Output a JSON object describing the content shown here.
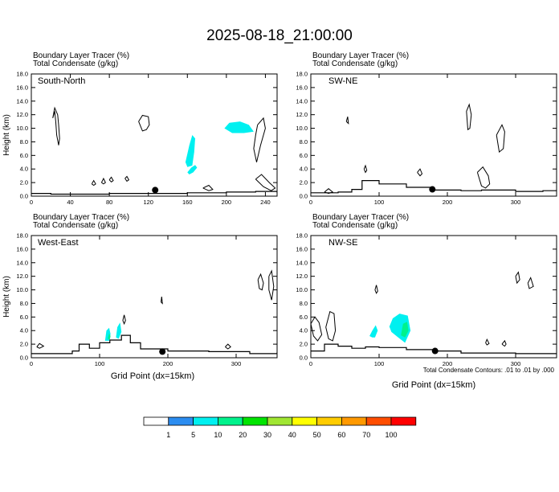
{
  "title": "2025-08-18_21:00:00",
  "footnote": "Total Condensate Contours: .01 to .01 by .000",
  "panel_subtitle_1": "Boundary Layer Tracer   (%)",
  "panel_subtitle_2": "Total Condensate   (g/kg)",
  "colorbar": {
    "colors": [
      "#ffffff",
      "#2c8df0",
      "#00f0f0",
      "#00f28c",
      "#00e400",
      "#a0e632",
      "#ffff00",
      "#ffcc00",
      "#ff9900",
      "#ff4d00",
      "#ff0000"
    ],
    "labels": [
      "1",
      "5",
      "10",
      "20",
      "30",
      "40",
      "50",
      "60",
      "70",
      "100"
    ]
  },
  "chart_data": [
    {
      "type": "contour",
      "panel_title": "South-North",
      "xlabel": "",
      "ylabel": "Height (km)",
      "xlim": [
        0,
        252
      ],
      "ylim": [
        0,
        18
      ],
      "xticks": [
        "0",
        "40",
        "80",
        "120",
        "160",
        "200",
        "240"
      ],
      "yticks": [
        "0.0",
        "2.0",
        "4.0",
        "6.0",
        "8.0",
        "10.0",
        "12.0",
        "14.0",
        "16.0",
        "18.0"
      ],
      "marker": {
        "x": 127,
        "y": 0.9
      },
      "terrain": [
        [
          0,
          0.4
        ],
        [
          20,
          0.3
        ],
        [
          40,
          0.3
        ],
        [
          80,
          0.4
        ],
        [
          120,
          0.4
        ],
        [
          160,
          0.5
        ],
        [
          200,
          0.6
        ],
        [
          230,
          0.7
        ],
        [
          252,
          0.5
        ]
      ],
      "shading": [
        {
          "bin": "5",
          "points": [
            [
              198,
              10.0
            ],
            [
              203,
              10.8
            ],
            [
              214,
              11.0
            ],
            [
              223,
              10.5
            ],
            [
              228,
              9.5
            ],
            [
              218,
              9.3
            ],
            [
              206,
              9.3
            ]
          ]
        },
        {
          "bin": "5",
          "points": [
            [
              158,
              5.0
            ],
            [
              162,
              7.5
            ],
            [
              165,
              9.0
            ],
            [
              168,
              8.5
            ],
            [
              167,
              6.5
            ],
            [
              165,
              4.5
            ],
            [
              160,
              4.3
            ]
          ]
        },
        {
          "bin": "5",
          "points": [
            [
              160,
              3.5
            ],
            [
              164,
              4.2
            ],
            [
              168,
              4.6
            ],
            [
              170,
              4.2
            ],
            [
              166,
              3.5
            ],
            [
              162,
              3.2
            ]
          ]
        }
      ],
      "contours": [
        [
          [
            22,
            11.5
          ],
          [
            24,
            12.5
          ],
          [
            25,
            11.0
          ],
          [
            26,
            9.0
          ],
          [
            28,
            7.5
          ],
          [
            29,
            8.5
          ],
          [
            28,
            10.5
          ],
          [
            27,
            12.0
          ],
          [
            24,
            13.0
          ],
          [
            22,
            11.5
          ]
        ],
        [
          [
            110,
            11.0
          ],
          [
            114,
            11.9
          ],
          [
            120,
            11.7
          ],
          [
            121,
            10.5
          ],
          [
            118,
            9.8
          ],
          [
            114,
            9.6
          ],
          [
            110,
            11.0
          ]
        ],
        [
          [
            232,
            10.5
          ],
          [
            238,
            11.5
          ],
          [
            240,
            10.0
          ],
          [
            235,
            7.5
          ],
          [
            231,
            5.0
          ],
          [
            228,
            7.0
          ],
          [
            230,
            9.0
          ],
          [
            232,
            10.5
          ]
        ],
        [
          [
            230,
            2.5
          ],
          [
            236,
            3.2
          ],
          [
            244,
            2.0
          ],
          [
            250,
            1.2
          ],
          [
            246,
            0.8
          ],
          [
            238,
            1.4
          ],
          [
            230,
            2.5
          ]
        ],
        [
          [
            176,
            1.2
          ],
          [
            182,
            1.6
          ],
          [
            186,
            1.0
          ],
          [
            182,
            0.8
          ],
          [
            176,
            1.2
          ]
        ],
        [
          [
            72,
            2.0
          ],
          [
            74,
            2.6
          ],
          [
            76,
            2.0
          ],
          [
            74,
            1.8
          ],
          [
            72,
            2.0
          ]
        ],
        [
          [
            80,
            2.4
          ],
          [
            82,
            2.8
          ],
          [
            84,
            2.3
          ],
          [
            82,
            2.1
          ],
          [
            80,
            2.4
          ]
        ],
        [
          [
            62,
            1.8
          ],
          [
            64,
            2.3
          ],
          [
            66,
            1.8
          ],
          [
            64,
            1.6
          ],
          [
            62,
            1.8
          ]
        ],
        [
          [
            96,
            2.6
          ],
          [
            98,
            2.9
          ],
          [
            100,
            2.4
          ],
          [
            98,
            2.2
          ],
          [
            96,
            2.6
          ]
        ]
      ]
    },
    {
      "type": "contour",
      "panel_title": "SW-NE",
      "xlabel": "",
      "ylabel": "",
      "xlim": [
        0,
        360
      ],
      "ylim": [
        0,
        18
      ],
      "xticks": [
        "0",
        "100",
        "200",
        "300"
      ],
      "yticks": [
        "0.0",
        "2.0",
        "4.0",
        "6.0",
        "8.0",
        "10.0",
        "12.0",
        "14.0",
        "16.0",
        "18.0"
      ],
      "marker": {
        "x": 178,
        "y": 1.0
      },
      "terrain": [
        [
          0,
          0.5
        ],
        [
          40,
          0.6
        ],
        [
          60,
          1.0
        ],
        [
          75,
          2.3
        ],
        [
          100,
          1.8
        ],
        [
          140,
          1.3
        ],
        [
          180,
          0.9
        ],
        [
          220,
          0.8
        ],
        [
          250,
          0.9
        ],
        [
          300,
          0.7
        ],
        [
          340,
          0.8
        ],
        [
          360,
          0.9
        ]
      ],
      "shading": [],
      "contours": [
        [
          [
            228,
            12.5
          ],
          [
            232,
            13.5
          ],
          [
            235,
            12.0
          ],
          [
            233,
            10.0
          ],
          [
            230,
            9.8
          ],
          [
            228,
            12.5
          ]
        ],
        [
          [
            272,
            9.0
          ],
          [
            280,
            10.5
          ],
          [
            284,
            9.5
          ],
          [
            282,
            7.0
          ],
          [
            276,
            6.5
          ],
          [
            272,
            9.0
          ]
        ],
        [
          [
            244,
            3.5
          ],
          [
            252,
            4.3
          ],
          [
            260,
            3.0
          ],
          [
            262,
            1.8
          ],
          [
            256,
            1.2
          ],
          [
            250,
            1.5
          ],
          [
            244,
            3.5
          ]
        ],
        [
          [
            52,
            11.0
          ],
          [
            54,
            11.7
          ],
          [
            55,
            10.7
          ],
          [
            52,
            11.0
          ]
        ],
        [
          [
            78,
            4.0
          ],
          [
            80,
            4.5
          ],
          [
            82,
            3.8
          ],
          [
            80,
            3.5
          ],
          [
            78,
            4.0
          ]
        ],
        [
          [
            156,
            3.5
          ],
          [
            160,
            4.0
          ],
          [
            163,
            3.3
          ],
          [
            160,
            3.0
          ],
          [
            156,
            3.5
          ]
        ],
        [
          [
            20,
            0.6
          ],
          [
            26,
            1.1
          ],
          [
            32,
            0.6
          ],
          [
            26,
            0.4
          ],
          [
            20,
            0.6
          ]
        ]
      ]
    },
    {
      "type": "contour",
      "panel_title": "West-East",
      "xlabel": "Grid Point (dx=15km)",
      "ylabel": "Height (km)",
      "xlim": [
        0,
        360
      ],
      "ylim": [
        0,
        18
      ],
      "xticks": [
        "0",
        "100",
        "200",
        "300"
      ],
      "yticks": [
        "0.0",
        "2.0",
        "4.0",
        "6.0",
        "8.0",
        "10.0",
        "12.0",
        "14.0",
        "16.0",
        "18.0"
      ],
      "marker": {
        "x": 192,
        "y": 0.9
      },
      "terrain": [
        [
          0,
          0.6
        ],
        [
          60,
          1.0
        ],
        [
          70,
          2.0
        ],
        [
          85,
          1.4
        ],
        [
          100,
          2.2
        ],
        [
          115,
          2.6
        ],
        [
          132,
          3.3
        ],
        [
          145,
          2.2
        ],
        [
          160,
          1.3
        ],
        [
          200,
          1.0
        ],
        [
          260,
          0.9
        ],
        [
          320,
          0.6
        ],
        [
          360,
          0.8
        ]
      ],
      "shading": [
        {
          "bin": "5",
          "points": [
            [
              108,
              2.5
            ],
            [
              110,
              4.0
            ],
            [
              114,
              4.4
            ],
            [
              116,
              3.5
            ],
            [
              114,
              2.5
            ]
          ]
        },
        {
          "bin": "5",
          "points": [
            [
              124,
              3.0
            ],
            [
              126,
              4.5
            ],
            [
              130,
              5.2
            ],
            [
              132,
              3.8
            ],
            [
              128,
              2.8
            ]
          ]
        },
        {
          "bin": "10",
          "points": [
            [
              112,
              2.8
            ],
            [
              114,
              3.6
            ],
            [
              116,
              3.2
            ],
            [
              115,
              2.7
            ]
          ]
        }
      ],
      "contours": [
        [
          [
            332,
            11.5
          ],
          [
            336,
            12.3
          ],
          [
            340,
            11.0
          ],
          [
            338,
            10.0
          ],
          [
            334,
            10.2
          ],
          [
            332,
            11.5
          ]
        ],
        [
          [
            348,
            12.0
          ],
          [
            352,
            12.8
          ],
          [
            355,
            10.5
          ],
          [
            352,
            8.5
          ],
          [
            348,
            10.0
          ],
          [
            348,
            12.0
          ]
        ],
        [
          [
            190,
            8.2
          ],
          [
            191,
            9.0
          ],
          [
            192,
            8.0
          ],
          [
            190,
            8.2
          ]
        ],
        [
          [
            134,
            5.5
          ],
          [
            136,
            6.3
          ],
          [
            138,
            5.5
          ],
          [
            136,
            5.0
          ],
          [
            134,
            5.5
          ]
        ],
        [
          [
            8,
            1.6
          ],
          [
            12,
            2.1
          ],
          [
            18,
            1.7
          ],
          [
            12,
            1.4
          ],
          [
            8,
            1.6
          ]
        ],
        [
          [
            284,
            1.6
          ],
          [
            288,
            2.0
          ],
          [
            292,
            1.6
          ],
          [
            288,
            1.3
          ],
          [
            284,
            1.6
          ]
        ]
      ]
    },
    {
      "type": "contour",
      "panel_title": "NW-SE",
      "xlabel": "Grid Point (dx=15km)",
      "ylabel": "",
      "xlim": [
        0,
        360
      ],
      "ylim": [
        0,
        18
      ],
      "xticks": [
        "0",
        "100",
        "200",
        "300"
      ],
      "yticks": [
        "0.0",
        "2.0",
        "4.0",
        "6.0",
        "8.0",
        "10.0",
        "12.0",
        "14.0",
        "16.0",
        "18.0"
      ],
      "marker": {
        "x": 182,
        "y": 1.0
      },
      "terrain": [
        [
          0,
          1.0
        ],
        [
          20,
          2.0
        ],
        [
          40,
          1.7
        ],
        [
          60,
          1.4
        ],
        [
          80,
          1.6
        ],
        [
          100,
          1.5
        ],
        [
          140,
          1.2
        ],
        [
          180,
          1.0
        ],
        [
          220,
          0.7
        ],
        [
          300,
          0.6
        ],
        [
          360,
          0.5
        ]
      ],
      "shading": [
        {
          "bin": "5",
          "points": [
            [
              115,
              4.6
            ],
            [
              120,
              5.8
            ],
            [
              130,
              6.5
            ],
            [
              142,
              6.2
            ],
            [
              146,
              4.0
            ],
            [
              138,
              2.2
            ],
            [
              128,
              3.0
            ],
            [
              118,
              3.8
            ]
          ]
        },
        {
          "bin": "5",
          "points": [
            [
              86,
              3.2
            ],
            [
              90,
              4.0
            ],
            [
              95,
              4.8
            ],
            [
              98,
              4.0
            ],
            [
              94,
              3.0
            ],
            [
              90,
              3.0
            ]
          ]
        },
        {
          "bin": "10",
          "points": [
            [
              132,
              3.3
            ],
            [
              135,
              5.0
            ],
            [
              141,
              5.3
            ],
            [
              143,
              4.0
            ],
            [
              138,
              3.0
            ]
          ]
        }
      ],
      "contours": [
        [
          [
            22,
            4.5
          ],
          [
            28,
            6.8
          ],
          [
            34,
            6.5
          ],
          [
            36,
            4.0
          ],
          [
            32,
            2.5
          ],
          [
            26,
            2.8
          ],
          [
            22,
            4.5
          ]
        ],
        [
          [
            0,
            5.0
          ],
          [
            6,
            6.0
          ],
          [
            12,
            5.2
          ],
          [
            16,
            3.4
          ],
          [
            10,
            2.5
          ],
          [
            4,
            3.2
          ],
          [
            0,
            5.0
          ]
        ],
        [
          [
            94,
            10.0
          ],
          [
            96,
            10.7
          ],
          [
            98,
            9.8
          ],
          [
            96,
            9.5
          ],
          [
            94,
            10.0
          ]
        ],
        [
          [
            300,
            12.0
          ],
          [
            304,
            12.6
          ],
          [
            306,
            11.5
          ],
          [
            302,
            11.0
          ],
          [
            300,
            12.0
          ]
        ],
        [
          [
            318,
            11.0
          ],
          [
            322,
            11.8
          ],
          [
            326,
            10.5
          ],
          [
            320,
            10.2
          ],
          [
            318,
            11.0
          ]
        ],
        [
          [
            280,
            2.0
          ],
          [
            284,
            2.5
          ],
          [
            286,
            2.0
          ],
          [
            284,
            1.7
          ],
          [
            280,
            2.0
          ]
        ],
        [
          [
            256,
            2.2
          ],
          [
            258,
            2.7
          ],
          [
            261,
            2.1
          ],
          [
            258,
            1.9
          ],
          [
            256,
            2.2
          ]
        ]
      ]
    }
  ]
}
